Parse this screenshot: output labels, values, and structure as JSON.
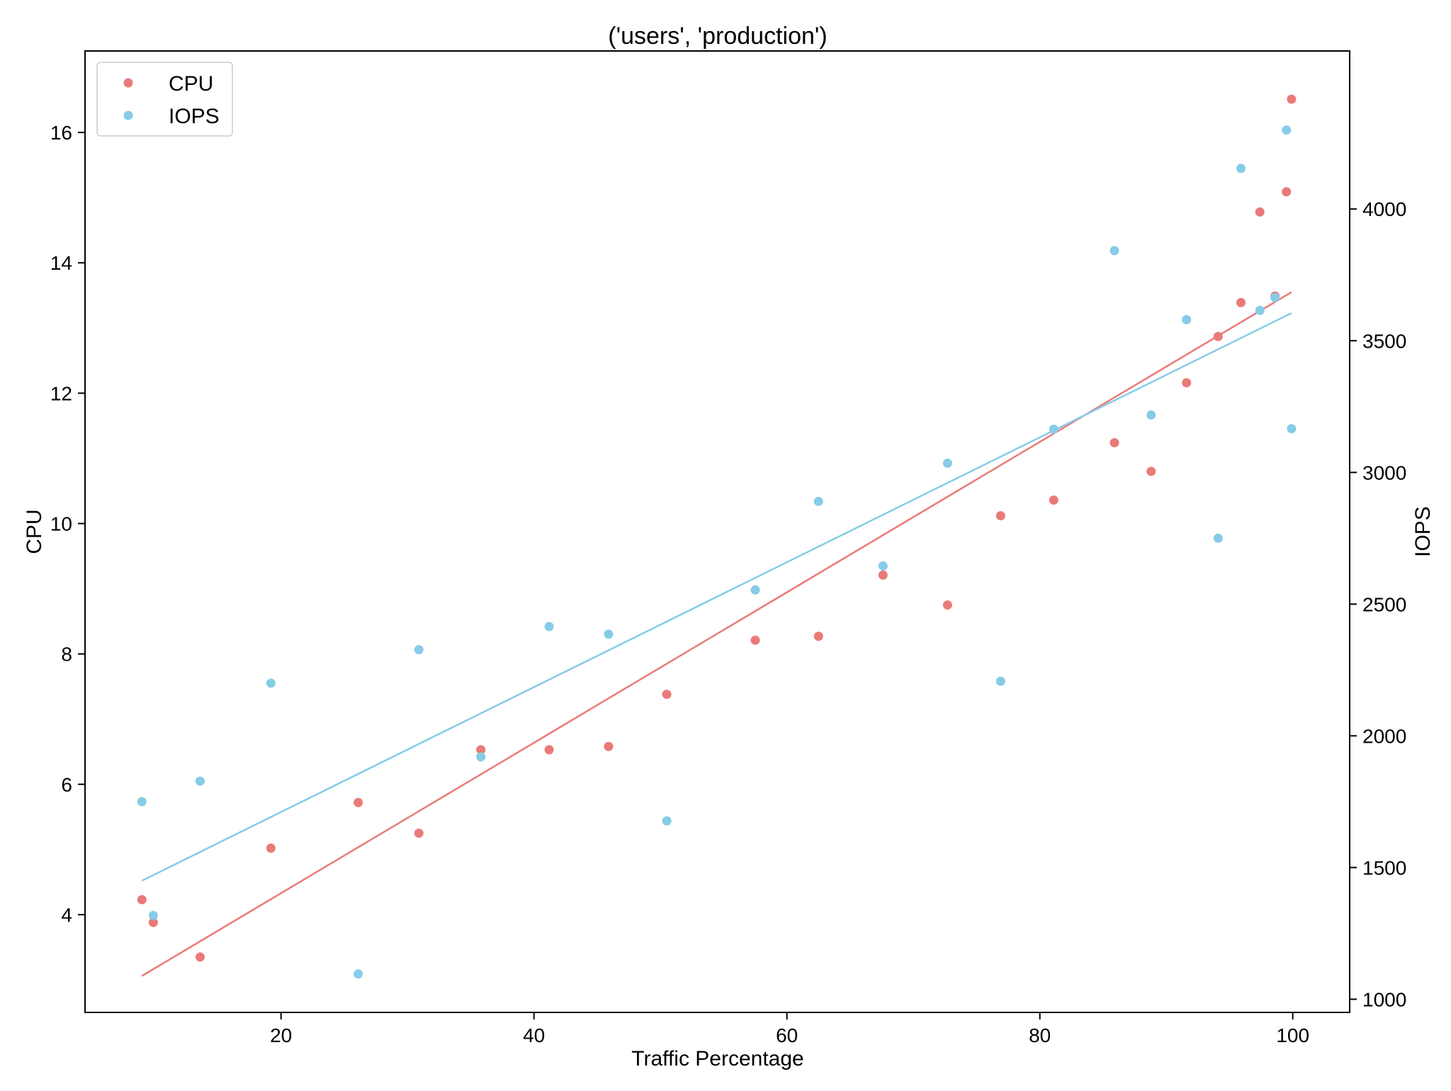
{
  "chart_data": {
    "type": "scatter",
    "title": "('users', 'production')",
    "xlabel": "Traffic Percentage",
    "ylabel": "CPU",
    "y2label": "IOPS",
    "xlim": [
      4.5,
      104.5
    ],
    "ylim": [
      2.5,
      17.25
    ],
    "y2lim": [
      950,
      4600
    ],
    "xticks": [
      20,
      40,
      60,
      80,
      100
    ],
    "yticks": [
      4,
      6,
      8,
      10,
      12,
      14,
      16
    ],
    "y2ticks": [
      1000,
      1500,
      2000,
      2500,
      3000,
      3500,
      4000
    ],
    "grid": false,
    "legend_position": "top-left",
    "x": [
      9.0,
      9.9,
      13.6,
      19.2,
      26.1,
      30.9,
      35.8,
      41.2,
      45.9,
      50.5,
      57.5,
      62.5,
      67.6,
      72.7,
      76.9,
      81.1,
      85.9,
      88.8,
      91.6,
      94.1,
      95.9,
      97.4,
      98.6,
      99.5,
      99.9
    ],
    "series": [
      {
        "name": "CPU",
        "axis": "left",
        "color": "#ea7a78",
        "values": [
          4.23,
          3.88,
          3.35,
          5.02,
          5.72,
          5.25,
          6.53,
          6.53,
          6.58,
          7.38,
          8.21,
          8.27,
          9.21,
          8.75,
          10.12,
          10.36,
          11.24,
          10.8,
          12.16,
          12.87,
          13.39,
          14.78,
          13.49,
          15.09,
          16.51
        ],
        "trend": [
          3.06,
          13.55
        ]
      },
      {
        "name": "IOPS",
        "axis": "right",
        "color": "#86cce8",
        "values": [
          1750,
          1318,
          1828,
          2200,
          1096,
          2327,
          1920,
          2415,
          2386,
          1677,
          2554,
          2890,
          2645,
          3035,
          2207,
          3164,
          3842,
          3218,
          3580,
          2750,
          4154,
          3615,
          3664,
          4300,
          3166
        ],
        "trend": [
          1450,
          3605
        ]
      }
    ]
  }
}
